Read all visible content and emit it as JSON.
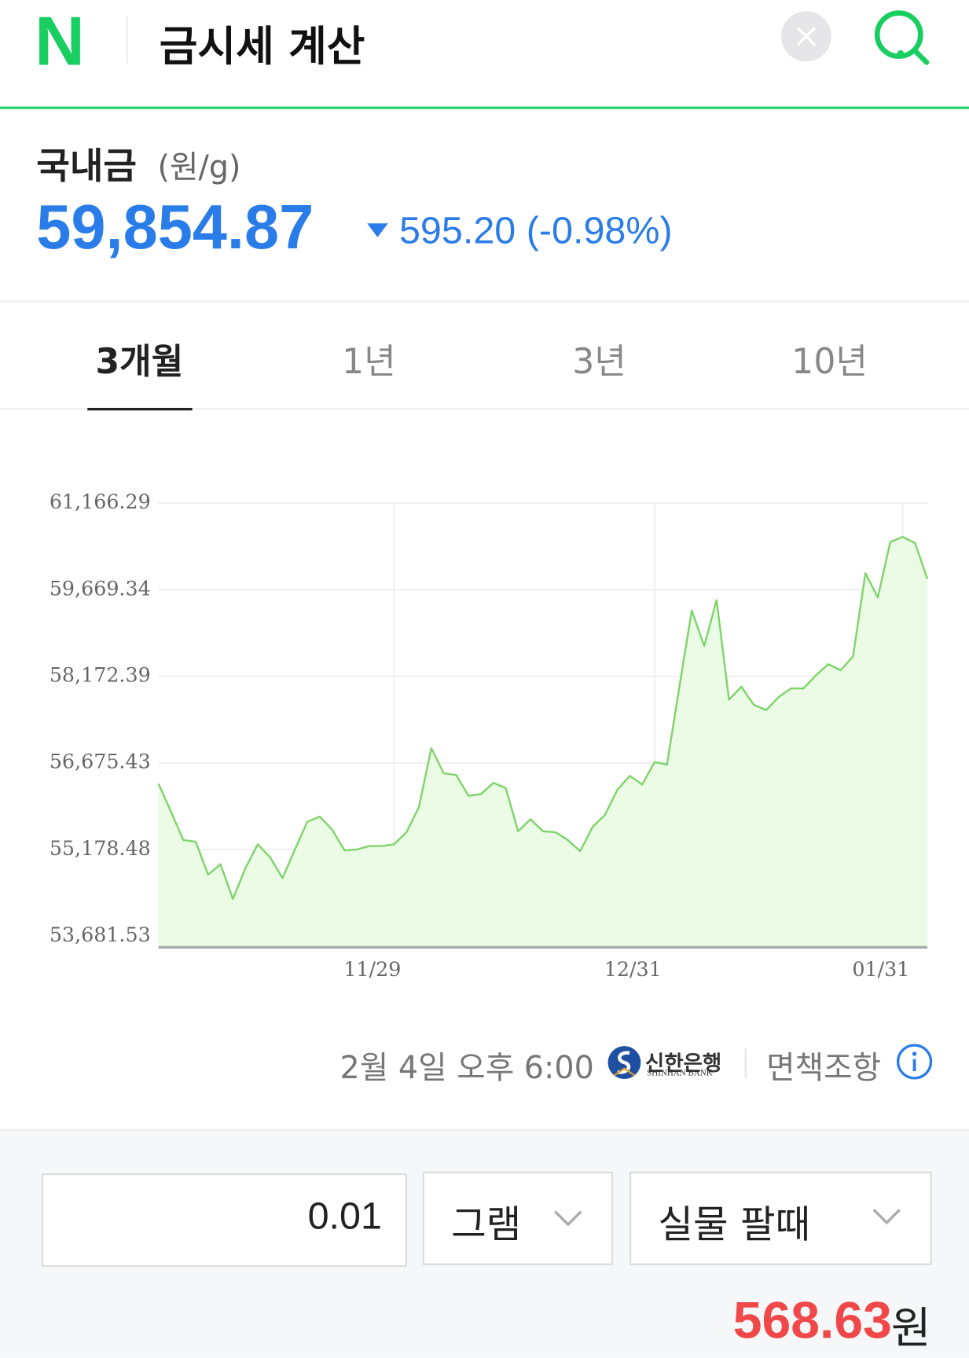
{
  "header": {
    "logo": "N",
    "title": "금시세 계산"
  },
  "price": {
    "label": "국내금",
    "unit": "(원/g)",
    "value": "59,854.87",
    "change": "595.20",
    "change_percent": "(-0.98%)"
  },
  "tabs": [
    "3개월",
    "1년",
    "3년",
    "10년"
  ],
  "chart_data": {
    "type": "line",
    "categories": [
      null,
      null,
      null,
      null,
      null,
      null,
      null,
      null,
      null,
      null,
      null,
      null,
      null,
      null,
      null,
      null,
      null,
      null,
      null,
      "11/29",
      null,
      null,
      null,
      null,
      null,
      null,
      null,
      null,
      null,
      null,
      null,
      null,
      null,
      null,
      null,
      null,
      null,
      null,
      null,
      null,
      "12/31",
      null,
      null,
      null,
      null,
      null,
      null,
      null,
      null,
      null,
      null,
      null,
      null,
      null,
      null,
      null,
      null,
      null,
      null,
      null,
      "01/31",
      null,
      null
    ],
    "values": [
      56316.2,
      55837.2,
      55343.2,
      55313.2,
      54744.4,
      54924.0,
      54325.2,
      54849.2,
      55268.3,
      55043.8,
      54684.5,
      55178.5,
      55657.5,
      55747.3,
      55522.8,
      55163.5,
      55178.5,
      55238.4,
      55238.4,
      55268.3,
      55477.9,
      55912.0,
      56929.9,
      56495.8,
      56465.9,
      56106.6,
      56136.5,
      56331.2,
      56241.4,
      55492.9,
      55702.4,
      55492.9,
      55477.9,
      55343.2,
      55148.6,
      55567.7,
      55777.3,
      56211.4,
      56450.9,
      56301.2,
      56690.4,
      56645.5,
      57992.8,
      59310.1,
      58696.3,
      59489.7,
      57768.2,
      57992.8,
      57678.4,
      57588.6,
      57813.1,
      57962.8,
      57962.8,
      58187.4,
      58382.0,
      58277.2,
      58516.7,
      59953.8,
      59534.6,
      60492.7,
      60582.5,
      60477.7,
      59854.87
    ],
    "color": "#7fd46b",
    "fill": "#ebfbe6",
    "ylim": [
      53681.53,
      61166.29
    ],
    "yticks": [
      {
        "value": 53681.53,
        "label": "53,681.53"
      },
      {
        "value": 55178.48,
        "label": "55,178.48"
      },
      {
        "value": 56675.43,
        "label": "56,675.43"
      },
      {
        "value": 58172.39,
        "label": "58,172.39"
      },
      {
        "value": 59669.34,
        "label": "59,669.34"
      },
      {
        "value": 61166.29,
        "label": "61,166.29"
      }
    ],
    "grid": true
  },
  "footer": {
    "timestamp": "2월 4일 오후 6:00",
    "bank": "신한은행",
    "bank_en": "SHINHAN BANK",
    "disclaimer": "면책조항"
  },
  "calculator": {
    "amount": "0.01",
    "unit": "그램",
    "mode": "실물 팔때",
    "result": "568.63",
    "result_unit": "원"
  }
}
